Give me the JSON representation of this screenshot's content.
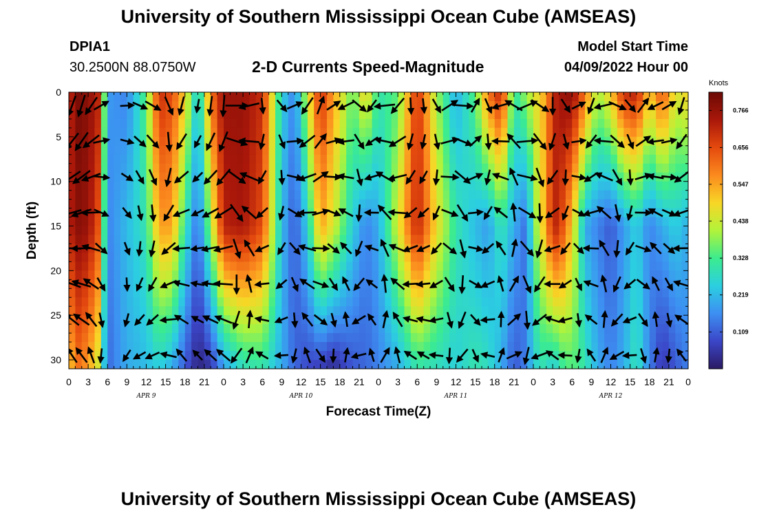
{
  "header": {
    "title": "University of Southern Mississippi Ocean Cube (AMSEAS)",
    "station": "DPIA1",
    "coords": "30.2500N  88.0750W",
    "subtitle": "2-D Currents Speed-Magnitude",
    "model_start_label": "Model Start Time",
    "model_start_value": "04/09/2022 Hour 00"
  },
  "footer": {
    "title": "University of Southern Mississippi Ocean Cube (AMSEAS)"
  },
  "colors": {
    "scale": [
      "#2b1a63",
      "#3b46c8",
      "#3d8ff2",
      "#2bcfe0",
      "#3cec8e",
      "#b2f33a",
      "#f8d626",
      "#fb8a1e",
      "#e44a0e",
      "#a9170a",
      "#6b0a05"
    ],
    "arrow": "#000000"
  },
  "chart_data": {
    "type": "heatmap",
    "xlabel": "Forecast Time(Z)",
    "ylabel": "Depth (ft)",
    "xlim": [
      0,
      96
    ],
    "ylim": [
      0,
      31
    ],
    "x_ticks": [
      0,
      3,
      6,
      9,
      12,
      15,
      18,
      21,
      24,
      27,
      30,
      33,
      36,
      39,
      42,
      45,
      48,
      51,
      54,
      57,
      60,
      63,
      66,
      69,
      72,
      75,
      78,
      81,
      84,
      87,
      90,
      93,
      96
    ],
    "x_tick_labels": [
      "0",
      "3",
      "6",
      "9",
      "12",
      "15",
      "18",
      "21",
      "0",
      "3",
      "6",
      "9",
      "12",
      "15",
      "18",
      "21",
      "0",
      "3",
      "6",
      "9",
      "12",
      "15",
      "18",
      "21",
      "0",
      "3",
      "6",
      "9",
      "12",
      "15",
      "18",
      "21",
      "0"
    ],
    "date_labels": [
      {
        "hour": 12,
        "text": "APR 9"
      },
      {
        "hour": 36,
        "text": "APR 10"
      },
      {
        "hour": 60,
        "text": "APR 11"
      },
      {
        "hour": 84,
        "text": "APR 12"
      }
    ],
    "y_ticks": [
      0,
      5,
      10,
      15,
      20,
      25,
      30
    ],
    "y_tick_labels": [
      "0",
      "5",
      "10",
      "15",
      "20",
      "25",
      "30"
    ],
    "colorbar": {
      "title": "Knots",
      "ticks": [
        0.109,
        0.219,
        0.328,
        0.438,
        0.547,
        0.656,
        0.766
      ],
      "tick_labels": [
        "0.109",
        "0.219",
        "0.328",
        "0.438",
        "0.547",
        "0.656",
        "0.766"
      ],
      "range": [
        0.0,
        0.82
      ]
    },
    "speed_profile": {
      "hours": [
        0,
        1.5,
        3,
        4.5,
        6,
        9,
        12,
        14,
        16,
        18,
        20,
        22,
        24,
        27,
        30,
        33,
        35,
        37,
        39,
        41,
        44,
        46,
        48,
        51,
        54,
        57,
        60,
        63,
        65,
        67,
        69,
        71,
        72,
        74,
        75,
        76,
        78,
        80,
        82,
        84,
        86,
        88,
        90,
        92,
        94,
        96
      ],
      "surface": [
        0.7,
        0.8,
        0.78,
        0.72,
        0.18,
        0.15,
        0.35,
        0.7,
        0.65,
        0.5,
        0.22,
        0.6,
        0.76,
        0.76,
        0.7,
        0.25,
        0.15,
        0.45,
        0.7,
        0.55,
        0.35,
        0.5,
        0.3,
        0.35,
        0.7,
        0.4,
        0.2,
        0.35,
        0.6,
        0.72,
        0.3,
        0.4,
        0.45,
        0.55,
        0.7,
        0.75,
        0.78,
        0.6,
        0.4,
        0.5,
        0.7,
        0.72,
        0.5,
        0.65,
        0.45,
        0.5
      ],
      "mid": [
        0.72,
        0.78,
        0.76,
        0.65,
        0.15,
        0.22,
        0.3,
        0.55,
        0.55,
        0.3,
        0.12,
        0.4,
        0.72,
        0.74,
        0.65,
        0.22,
        0.1,
        0.25,
        0.55,
        0.45,
        0.25,
        0.15,
        0.2,
        0.45,
        0.72,
        0.48,
        0.3,
        0.22,
        0.18,
        0.3,
        0.2,
        0.12,
        0.35,
        0.55,
        0.72,
        0.7,
        0.5,
        0.2,
        0.15,
        0.1,
        0.18,
        0.25,
        0.15,
        0.2,
        0.25,
        0.2
      ],
      "bottom": [
        0.5,
        0.6,
        0.55,
        0.45,
        0.12,
        0.2,
        0.22,
        0.25,
        0.2,
        0.1,
        0.02,
        0.05,
        0.18,
        0.28,
        0.3,
        0.2,
        0.12,
        0.08,
        0.06,
        0.03,
        0.1,
        0.12,
        0.15,
        0.2,
        0.3,
        0.28,
        0.25,
        0.3,
        0.28,
        0.2,
        0.1,
        0.15,
        0.25,
        0.3,
        0.22,
        0.3,
        0.35,
        0.3,
        0.2,
        0.15,
        0.2,
        0.3,
        0.15,
        0.05,
        0.1,
        0.15
      ]
    },
    "vector_hours": [
      0.5,
      2,
      3.5,
      5,
      9,
      11,
      13,
      15.5,
      17.5,
      20,
      22,
      24,
      26,
      28,
      30,
      33,
      35,
      37,
      39,
      41,
      43,
      45,
      47,
      49,
      51,
      53,
      55,
      57,
      59,
      61,
      63,
      65,
      67,
      69,
      71,
      73,
      75,
      77,
      79,
      81,
      83,
      85,
      87,
      89,
      91,
      93,
      95
    ],
    "vector_depths": [
      1.5,
      5.5,
      9.5,
      13.5,
      17.5,
      21.5,
      25.5,
      29.5
    ],
    "vector_direction_deg": [
      200,
      190,
      200,
      60,
      80,
      100,
      120,
      150,
      180,
      190,
      180,
      170,
      90,
      250,
      160,
      140,
      60,
      200,
      20,
      50,
      230,
      130,
      210,
      250,
      220,
      170,
      160,
      150,
      50,
      80,
      30,
      150,
      240,
      300,
      60,
      110,
      180,
      140,
      50,
      200,
      250,
      100,
      140,
      30,
      230,
      60,
      190
    ],
    "vector_speed": [
      0.6,
      0.65,
      0.55,
      0.35,
      0.2,
      0.3,
      0.4,
      0.5,
      0.45,
      0.2,
      0.5,
      0.6,
      0.65,
      0.55,
      0.3,
      0.25,
      0.35,
      0.5,
      0.45,
      0.3,
      0.35,
      0.4,
      0.25,
      0.55,
      0.5,
      0.35,
      0.25,
      0.3,
      0.45,
      0.55,
      0.3,
      0.3,
      0.4,
      0.5,
      0.6,
      0.55,
      0.4,
      0.3,
      0.25,
      0.35,
      0.5,
      0.45,
      0.3,
      0.4,
      0.35,
      0.3,
      0.4
    ]
  }
}
